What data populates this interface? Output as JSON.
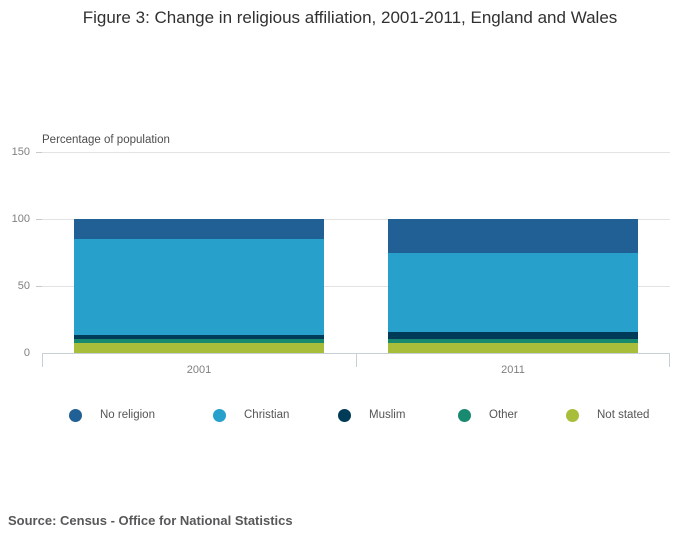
{
  "title": "Figure 3: Change in religious affiliation, 2001-2011, England and Wales",
  "source": "Source: Census - Office for National Statistics",
  "chart_data": {
    "type": "bar",
    "subtype": "stacked-column",
    "title": "Figure 3: Change in religious affiliation, 2001-2011, England and Wales",
    "unit_label": "Percentage of population",
    "xlabel": "",
    "ylabel": "Percentage of population",
    "categories": [
      "2001",
      "2011"
    ],
    "series": [
      {
        "name": "No religion",
        "color": "#206095",
        "values": [
          14.8,
          25.1
        ]
      },
      {
        "name": "Christian",
        "color": "#27a0cc",
        "values": [
          71.7,
          59.3
        ]
      },
      {
        "name": "Muslim",
        "color": "#003c57",
        "values": [
          3.0,
          4.8
        ]
      },
      {
        "name": "Other",
        "color": "#188a70",
        "values": [
          2.8,
          3.6
        ]
      },
      {
        "name": "Not stated",
        "color": "#a8bd3a",
        "values": [
          7.7,
          7.2
        ]
      }
    ],
    "stack_order_bottom_to_top": [
      "Not stated",
      "Other",
      "Muslim",
      "Christian",
      "No religion"
    ],
    "y_ticks": [
      0,
      50,
      100,
      150
    ],
    "ylim": [
      0,
      150
    ],
    "grid": true,
    "legend_position": "bottom"
  }
}
